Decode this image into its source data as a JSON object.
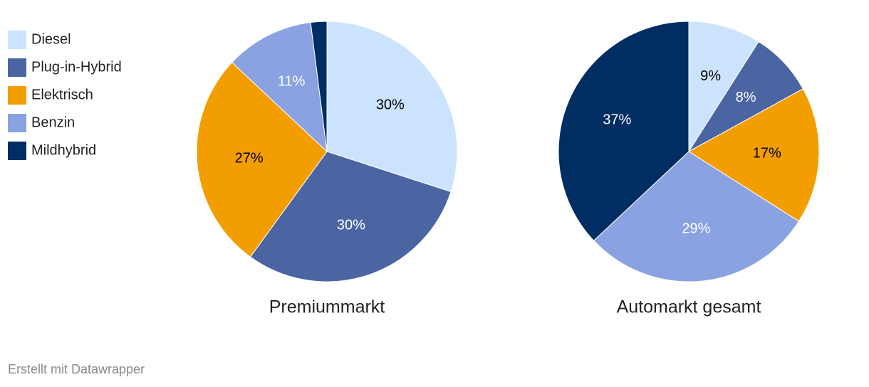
{
  "legend": {
    "names": [
      "Diesel",
      "Plug-in-Hybrid",
      "Elektrisch",
      "Benzin",
      "Mildhybrid"
    ],
    "colors": [
      "#cce3fd",
      "#4a65a1",
      "#f29d00",
      "#8aa2e2",
      "#002d62"
    ],
    "label_colors": [
      "#000000",
      "#ffffff",
      "#000000",
      "#ffffff",
      "#ffffff"
    ]
  },
  "chart_data": [
    {
      "type": "pie",
      "title": "Premiummarkt",
      "values": [
        30,
        30,
        27,
        11,
        2
      ],
      "value_labels": [
        "30%",
        "30%",
        "27%",
        "11%",
        null
      ]
    },
    {
      "type": "pie",
      "title": "Automarkt gesamt",
      "values": [
        9,
        8,
        17,
        29,
        37
      ],
      "value_labels": [
        "9%",
        "8%",
        "17%",
        "29%",
        "37%"
      ]
    }
  ],
  "footer": "Erstellt mit Datawrapper"
}
